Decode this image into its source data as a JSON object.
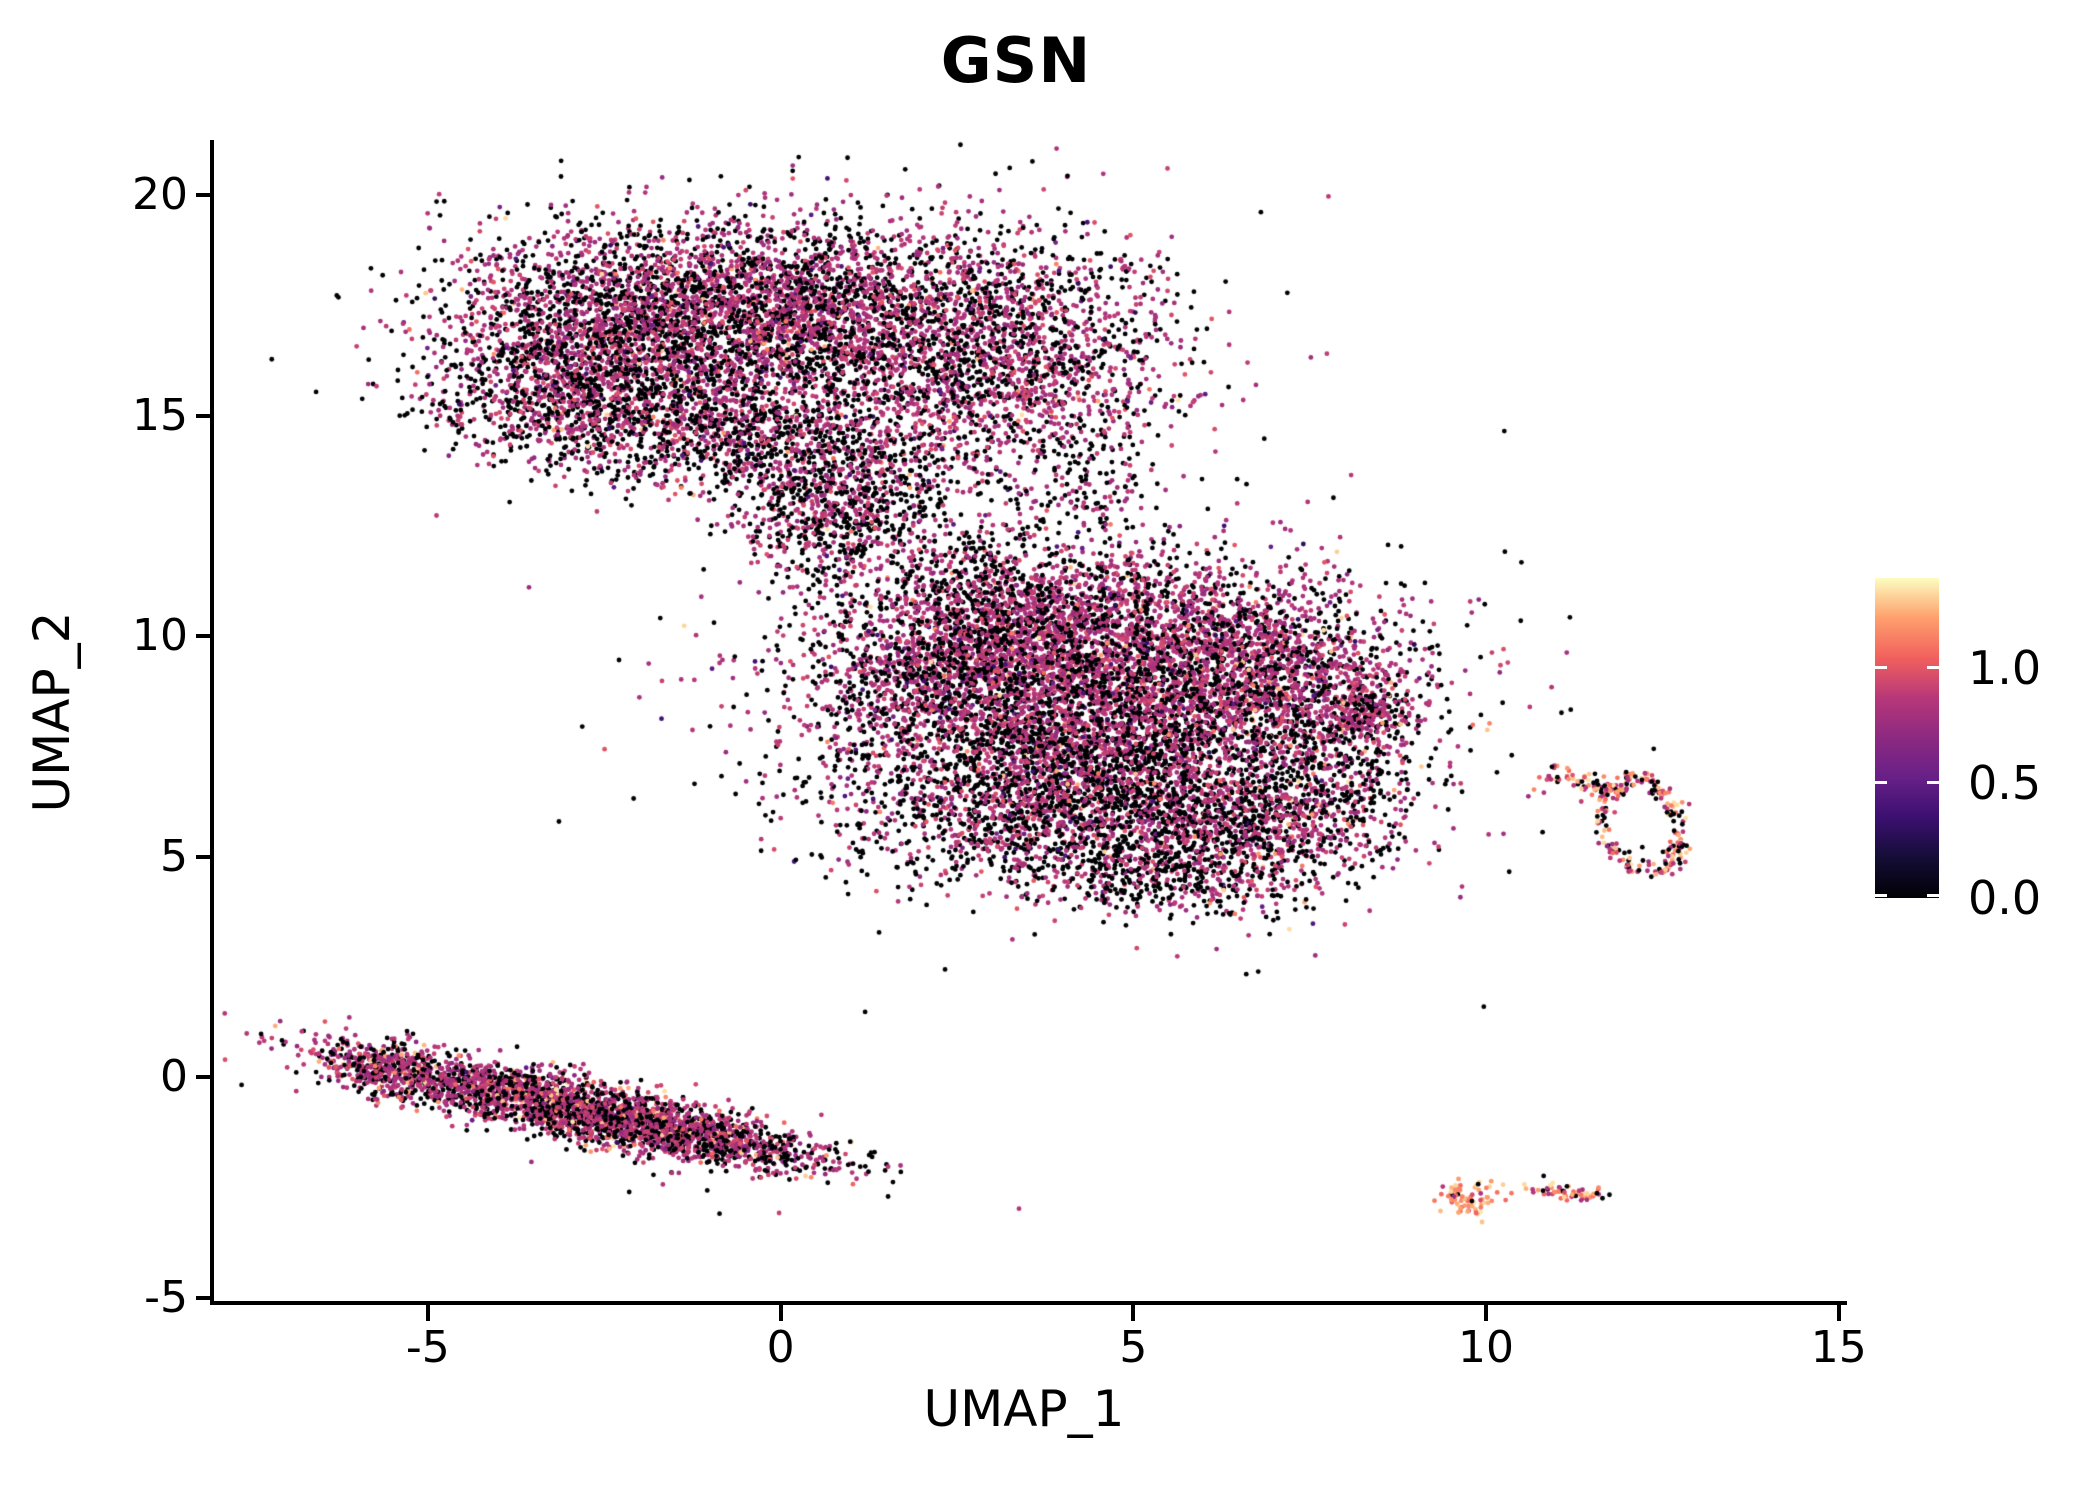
{
  "chart_data": {
    "type": "scatter",
    "title": "GSN",
    "xlabel": "UMAP_1",
    "ylabel": "UMAP_2",
    "xlim": [
      -8.06,
      15.06
    ],
    "ylim": [
      -5.12,
      21.36
    ],
    "xticks": [
      -5,
      0,
      5,
      10,
      15
    ],
    "yticks": [
      -5,
      0,
      5,
      10,
      15,
      20
    ],
    "grid": false,
    "legend_position": "right-colorbar",
    "point_radius_px": 2.4,
    "colorbar": {
      "colormap": "magma",
      "vmin": 0.0,
      "vmax": 1.39,
      "ticks": [
        {
          "label": "1.0",
          "value": 1.0
        },
        {
          "label": "0.5",
          "value": 0.5
        },
        {
          "label": "0.0",
          "value": 0.0
        }
      ]
    },
    "colormap_stops": [
      [
        0.0,
        0,
        0,
        4
      ],
      [
        0.125,
        20,
        14,
        54
      ],
      [
        0.25,
        59,
        15,
        112
      ],
      [
        0.375,
        103,
        32,
        135
      ],
      [
        0.5,
        140,
        41,
        129
      ],
      [
        0.625,
        183,
        55,
        121
      ],
      [
        0.75,
        241,
        96,
        93
      ],
      [
        0.875,
        254,
        159,
        109
      ],
      [
        1.0,
        252,
        253,
        191
      ]
    ],
    "expression_levels": {
      "zero": 0.0,
      "mid_mean": 0.85,
      "high_range": [
        1.05,
        1.35
      ]
    },
    "clusters": [
      {
        "name": "upper-blob-left",
        "kind": "gauss",
        "cx": -2.2,
        "cy": 17.0,
        "sx": 1.25,
        "sy": 1.15,
        "rot": -10,
        "n": 2400,
        "mix": {
          "p0": 0.42,
          "plow": 0.02,
          "pmid": 0.545,
          "phi": 0.015
        }
      },
      {
        "name": "upper-blob-mid",
        "kind": "gauss",
        "cx": 0.2,
        "cy": 17.4,
        "sx": 1.1,
        "sy": 1.0,
        "rot": 0,
        "n": 1700,
        "mix": {
          "p0": 0.4,
          "plow": 0.02,
          "pmid": 0.565,
          "phi": 0.015
        }
      },
      {
        "name": "upper-blob-right",
        "kind": "gauss",
        "cx": 2.9,
        "cy": 16.4,
        "sx": 1.35,
        "sy": 1.45,
        "rot": 15,
        "n": 2300,
        "mix": {
          "p0": 0.42,
          "plow": 0.02,
          "pmid": 0.545,
          "phi": 0.015
        }
      },
      {
        "name": "upper-blob-lower-left",
        "kind": "gauss",
        "cx": -3.0,
        "cy": 15.2,
        "sx": 1.0,
        "sy": 0.75,
        "rot": -20,
        "n": 800,
        "mix": {
          "p0": 0.5,
          "plow": 0.02,
          "pmid": 0.47,
          "phi": 0.01
        }
      },
      {
        "name": "upper-blob-lower-mid",
        "kind": "gauss",
        "cx": -0.6,
        "cy": 14.6,
        "sx": 1.0,
        "sy": 0.75,
        "rot": 0,
        "n": 700,
        "mix": {
          "p0": 0.5,
          "plow": 0.02,
          "pmid": 0.47,
          "phi": 0.01
        }
      },
      {
        "name": "upper-blob-bottom",
        "kind": "gauss",
        "cx": 0.9,
        "cy": 13.4,
        "sx": 0.8,
        "sy": 0.8,
        "rot": 0,
        "n": 550,
        "mix": {
          "p0": 0.52,
          "plow": 0.02,
          "pmid": 0.45,
          "phi": 0.01
        }
      },
      {
        "name": "upper-tail",
        "kind": "gauss",
        "cx": 0.6,
        "cy": 12.3,
        "sx": 0.55,
        "sy": 0.75,
        "rot": 0,
        "n": 260,
        "mix": {
          "p0": 0.5,
          "plow": 0.02,
          "pmid": 0.47,
          "phi": 0.01
        }
      },
      {
        "name": "bridge-sparse",
        "kind": "gauss",
        "cx": 2.4,
        "cy": 12.0,
        "sx": 1.2,
        "sy": 0.85,
        "rot": 0,
        "n": 280,
        "mix": {
          "p0": 0.55,
          "plow": 0.02,
          "pmid": 0.42,
          "phi": 0.01
        }
      },
      {
        "name": "upper-right-patch",
        "kind": "gauss",
        "cx": 4.5,
        "cy": 13.4,
        "sx": 0.5,
        "sy": 0.55,
        "rot": 0,
        "n": 90,
        "mix": {
          "p0": 0.5,
          "plow": 0.0,
          "pmid": 0.49,
          "phi": 0.01
        }
      },
      {
        "name": "upper-halo",
        "kind": "gauss",
        "cx": 0.3,
        "cy": 16.5,
        "sx": 2.6,
        "sy": 1.9,
        "rot": 0,
        "n": 350,
        "mix": {
          "p0": 0.6,
          "plow": 0.02,
          "pmid": 0.37,
          "phi": 0.01
        }
      },
      {
        "name": "mid-top",
        "kind": "gauss",
        "cx": 4.2,
        "cy": 10.1,
        "sx": 1.7,
        "sy": 0.9,
        "rot": 5,
        "n": 2200,
        "mix": {
          "p0": 0.3,
          "plow": 0.02,
          "pmid": 0.655,
          "phi": 0.025
        }
      },
      {
        "name": "mid-core",
        "kind": "gauss",
        "cx": 4.5,
        "cy": 8.4,
        "sx": 2.0,
        "sy": 1.1,
        "rot": 0,
        "n": 3000,
        "mix": {
          "p0": 0.42,
          "plow": 0.02,
          "pmid": 0.545,
          "phi": 0.015
        }
      },
      {
        "name": "mid-bottom",
        "kind": "gauss",
        "cx": 4.4,
        "cy": 6.3,
        "sx": 1.7,
        "sy": 1.0,
        "rot": 0,
        "n": 2400,
        "mix": {
          "p0": 0.56,
          "plow": 0.02,
          "pmid": 0.41,
          "phi": 0.01
        }
      },
      {
        "name": "mid-left-edge",
        "kind": "gauss",
        "cx": 2.3,
        "cy": 9.3,
        "sx": 0.8,
        "sy": 1.0,
        "rot": -30,
        "n": 600,
        "mix": {
          "p0": 0.45,
          "plow": 0.02,
          "pmid": 0.52,
          "phi": 0.01
        }
      },
      {
        "name": "mid-right-lobe",
        "kind": "gauss",
        "cx": 7.0,
        "cy": 9.2,
        "sx": 1.0,
        "sy": 1.0,
        "rot": 0,
        "n": 1000,
        "mix": {
          "p0": 0.36,
          "plow": 0.02,
          "pmid": 0.59,
          "phi": 0.03
        }
      },
      {
        "name": "mid-right-knob",
        "kind": "gauss",
        "cx": 8.35,
        "cy": 8.3,
        "sx": 0.3,
        "sy": 0.35,
        "rot": 0,
        "n": 180,
        "mix": {
          "p0": 0.35,
          "plow": 0.0,
          "pmid": 0.61,
          "phi": 0.04
        }
      },
      {
        "name": "mid-bottom-right",
        "kind": "gauss",
        "cx": 6.7,
        "cy": 5.5,
        "sx": 0.9,
        "sy": 0.8,
        "rot": 0,
        "n": 700,
        "mix": {
          "p0": 0.5,
          "plow": 0.01,
          "pmid": 0.45,
          "phi": 0.04
        }
      },
      {
        "name": "mid-bottom-tip",
        "kind": "gauss",
        "cx": 5.2,
        "cy": 4.6,
        "sx": 0.8,
        "sy": 0.5,
        "rot": 0,
        "n": 300,
        "mix": {
          "p0": 0.55,
          "plow": 0.0,
          "pmid": 0.43,
          "phi": 0.02
        }
      },
      {
        "name": "mid-top-bridge",
        "kind": "gauss",
        "cx": 3.0,
        "cy": 10.9,
        "sx": 0.9,
        "sy": 0.55,
        "rot": -20,
        "n": 250,
        "mix": {
          "p0": 0.5,
          "plow": 0.0,
          "pmid": 0.49,
          "phi": 0.01
        }
      },
      {
        "name": "mid-right-edge",
        "kind": "gauss",
        "cx": 7.9,
        "cy": 6.9,
        "sx": 0.6,
        "sy": 0.9,
        "rot": 0,
        "n": 300,
        "mix": {
          "p0": 0.55,
          "plow": 0.0,
          "pmid": 0.44,
          "phi": 0.01
        }
      },
      {
        "name": "mid-halo",
        "kind": "gauss",
        "cx": 4.8,
        "cy": 8.0,
        "sx": 2.9,
        "sy": 2.4,
        "rot": 0,
        "n": 300,
        "mix": {
          "p0": 0.6,
          "plow": 0.02,
          "pmid": 0.37,
          "phi": 0.01
        }
      },
      {
        "name": "lower-left-band",
        "kind": "gauss",
        "cx": -3.2,
        "cy": -0.6,
        "sx": 1.6,
        "sy": 0.33,
        "rot": -19,
        "n": 2200,
        "mix": {
          "p0": 0.35,
          "plow": 0.01,
          "pmid": 0.57,
          "phi": 0.07
        }
      },
      {
        "name": "lower-left-band2",
        "kind": "gauss",
        "cx": -1.2,
        "cy": -1.35,
        "sx": 1.1,
        "sy": 0.25,
        "rot": -15,
        "n": 700,
        "mix": {
          "p0": 0.4,
          "plow": 0.0,
          "pmid": 0.54,
          "phi": 0.06
        }
      },
      {
        "name": "lower-left-tip",
        "kind": "gauss",
        "cx": -5.6,
        "cy": 0.2,
        "sx": 0.5,
        "sy": 0.3,
        "rot": -25,
        "n": 300,
        "mix": {
          "p0": 0.35,
          "plow": 0.0,
          "pmid": 0.55,
          "phi": 0.1
        }
      },
      {
        "name": "lower-left-halo",
        "kind": "gauss",
        "cx": -3.0,
        "cy": -0.8,
        "sx": 2.2,
        "sy": 0.6,
        "rot": -19,
        "n": 80,
        "mix": {
          "p0": 0.5,
          "plow": 0.0,
          "pmid": 0.45,
          "phi": 0.05
        }
      },
      {
        "name": "right-ring",
        "kind": "ring",
        "cx": 12.2,
        "cy": 5.75,
        "rx": 0.55,
        "ry": 1.05,
        "rot": 8,
        "jitter": 0.13,
        "n": 230,
        "mix": {
          "p0": 0.3,
          "plow": 0.0,
          "pmid": 0.32,
          "phi": 0.38
        }
      },
      {
        "name": "right-ring-tail",
        "kind": "gauss",
        "cx": 11.35,
        "cy": 6.7,
        "sx": 0.38,
        "sy": 0.12,
        "rot": -20,
        "n": 60,
        "mix": {
          "p0": 0.28,
          "plow": 0.0,
          "pmid": 0.3,
          "phi": 0.42
        }
      },
      {
        "name": "right-ring-outliers",
        "kind": "points",
        "pts": [
          [
            10.68,
            6.52,
            1.15
          ],
          [
            10.82,
            6.45,
            0.85
          ],
          [
            11.35,
            6.25,
            0.9
          ]
        ]
      },
      {
        "name": "small-orange-blob",
        "kind": "gauss",
        "cx": 9.72,
        "cy": -2.7,
        "sx": 0.22,
        "sy": 0.2,
        "rot": 0,
        "n": 75,
        "mix": {
          "p0": 0.05,
          "plow": 0.0,
          "pmid": 0.12,
          "phi": 0.83
        }
      },
      {
        "name": "small-orange-dot",
        "kind": "points",
        "pts": [
          [
            10.36,
            -2.63,
            1.1
          ]
        ]
      },
      {
        "name": "small-orange-strip",
        "kind": "gauss",
        "cx": 11.2,
        "cy": -2.62,
        "sx": 0.3,
        "sy": 0.09,
        "rot": -8,
        "n": 60,
        "mix": {
          "p0": 0.18,
          "plow": 0.0,
          "pmid": 0.25,
          "phi": 0.57
        }
      },
      {
        "name": "isolated-pair",
        "kind": "points",
        "pts": [
          [
            6.4,
            3.73,
            0.0
          ],
          [
            6.44,
            3.7,
            1.12
          ]
        ]
      }
    ]
  }
}
